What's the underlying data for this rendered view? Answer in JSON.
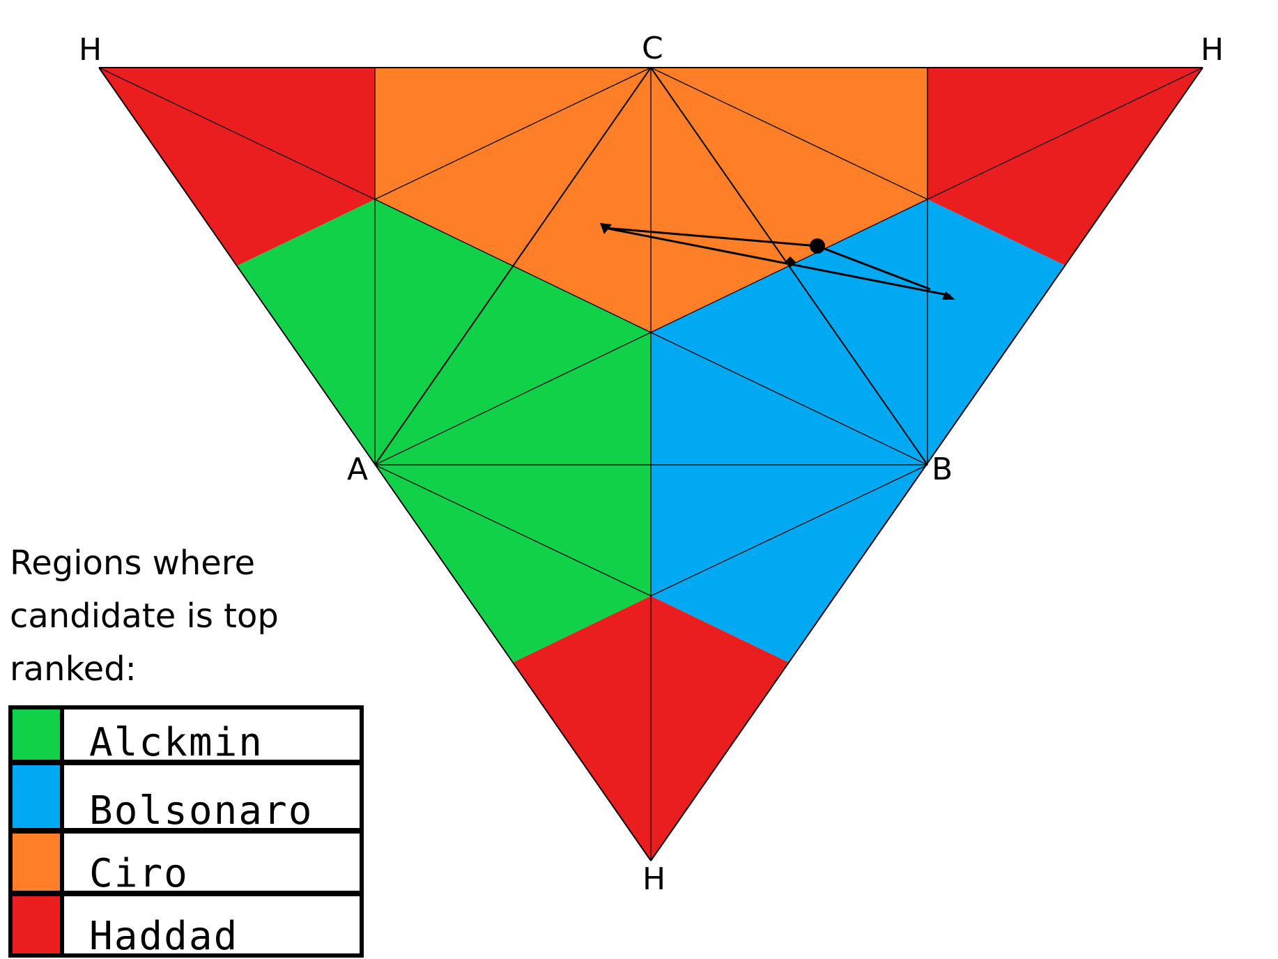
{
  "vertex_labels": {
    "h_top_left": "H",
    "c_top": "C",
    "h_top_right": "H",
    "a_left": "A",
    "b_right": "B",
    "h_bottom": "H"
  },
  "legend": {
    "title_lines": [
      "Regions where",
      "candidate is top",
      "ranked:"
    ],
    "items": [
      {
        "name": "Alckmin",
        "color": "#11d148"
      },
      {
        "name": "Bolsonaro",
        "color": "#00a9f2"
      },
      {
        "name": "Ciro",
        "color": "#fe7f28"
      },
      {
        "name": "Haddad",
        "color": "#ea1e1f"
      }
    ]
  },
  "colors": {
    "alckmin": "#11d148",
    "bolsonaro": "#00a9f2",
    "ciro": "#fe7f28",
    "haddad": "#ea1e1f"
  }
}
